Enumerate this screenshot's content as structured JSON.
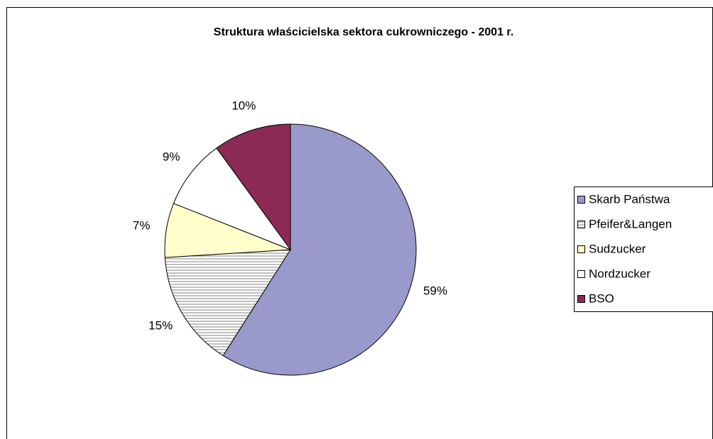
{
  "chart_data": {
    "type": "pie",
    "title": "Struktura właścicielska sektora cukrowniczego - 2001 r.",
    "categories": [
      "Skarb Państwa",
      "Pfeifer&Langen",
      "Sudzucker",
      "Nordzucker",
      "BSO"
    ],
    "values": [
      59,
      15,
      7,
      9,
      10
    ],
    "value_labels": [
      "59%",
      "15%",
      "7%",
      "9%",
      "10%"
    ],
    "colors": [
      "#9999cc",
      "#808080",
      "#ffffcc",
      "#ffffff",
      "#8b2a55"
    ],
    "hatch": [
      false,
      true,
      false,
      false,
      false
    ],
    "legend": "right"
  }
}
